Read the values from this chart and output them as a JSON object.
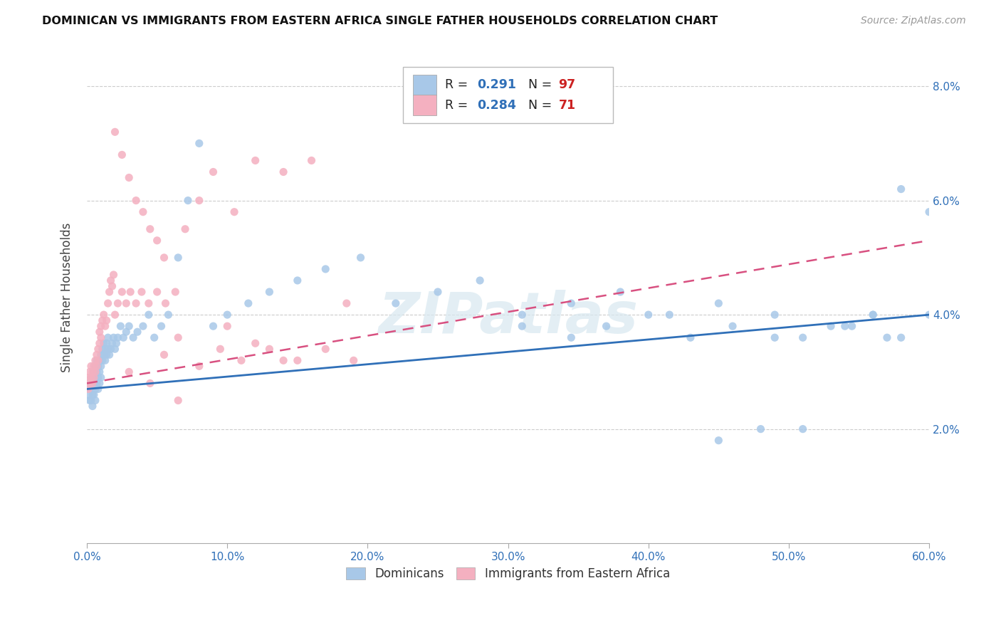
{
  "title": "DOMINICAN VS IMMIGRANTS FROM EASTERN AFRICA SINGLE FATHER HOUSEHOLDS CORRELATION CHART",
  "source": "Source: ZipAtlas.com",
  "ylabel": "Single Father Households",
  "legend_blue_r_val": "0.291",
  "legend_blue_n_val": "97",
  "legend_pink_r_val": "0.284",
  "legend_pink_n_val": "71",
  "legend_blue_label": "Dominicans",
  "legend_pink_label": "Immigrants from Eastern Africa",
  "blue_color": "#a8c8e8",
  "pink_color": "#f4b0c0",
  "blue_line_color": "#3070b8",
  "pink_line_color": "#d85080",
  "watermark_text": "ZIPatlas",
  "xlim": [
    0.0,
    0.6
  ],
  "ylim": [
    0.0,
    0.086
  ],
  "yticks": [
    0.02,
    0.04,
    0.06,
    0.08
  ],
  "xticks": [
    0.0,
    0.1,
    0.2,
    0.3,
    0.4,
    0.5,
    0.6
  ],
  "blue_x": [
    0.001,
    0.001,
    0.002,
    0.002,
    0.003,
    0.003,
    0.003,
    0.004,
    0.004,
    0.004,
    0.005,
    0.005,
    0.005,
    0.006,
    0.006,
    0.006,
    0.006,
    0.007,
    0.007,
    0.007,
    0.008,
    0.008,
    0.008,
    0.009,
    0.009,
    0.009,
    0.01,
    0.01,
    0.01,
    0.011,
    0.011,
    0.012,
    0.012,
    0.013,
    0.013,
    0.014,
    0.014,
    0.015,
    0.015,
    0.016,
    0.017,
    0.018,
    0.019,
    0.02,
    0.021,
    0.022,
    0.024,
    0.026,
    0.028,
    0.03,
    0.033,
    0.036,
    0.04,
    0.044,
    0.048,
    0.053,
    0.058,
    0.065,
    0.072,
    0.08,
    0.09,
    0.1,
    0.115,
    0.13,
    0.15,
    0.17,
    0.195,
    0.22,
    0.25,
    0.28,
    0.31,
    0.345,
    0.38,
    0.415,
    0.45,
    0.49,
    0.53,
    0.56,
    0.58,
    0.6,
    0.31,
    0.345,
    0.37,
    0.4,
    0.43,
    0.46,
    0.49,
    0.51,
    0.54,
    0.56,
    0.58,
    0.6,
    0.57,
    0.545,
    0.51,
    0.48,
    0.45
  ],
  "blue_y": [
    0.028,
    0.026,
    0.027,
    0.025,
    0.029,
    0.027,
    0.025,
    0.028,
    0.026,
    0.024,
    0.03,
    0.028,
    0.026,
    0.031,
    0.029,
    0.027,
    0.025,
    0.032,
    0.03,
    0.028,
    0.031,
    0.029,
    0.027,
    0.032,
    0.03,
    0.028,
    0.033,
    0.031,
    0.029,
    0.034,
    0.032,
    0.035,
    0.033,
    0.034,
    0.032,
    0.035,
    0.033,
    0.036,
    0.034,
    0.033,
    0.034,
    0.035,
    0.036,
    0.034,
    0.035,
    0.036,
    0.038,
    0.036,
    0.037,
    0.038,
    0.036,
    0.037,
    0.038,
    0.04,
    0.036,
    0.038,
    0.04,
    0.05,
    0.06,
    0.07,
    0.038,
    0.04,
    0.042,
    0.044,
    0.046,
    0.048,
    0.05,
    0.042,
    0.044,
    0.046,
    0.04,
    0.042,
    0.044,
    0.04,
    0.042,
    0.036,
    0.038,
    0.04,
    0.036,
    0.04,
    0.038,
    0.036,
    0.038,
    0.04,
    0.036,
    0.038,
    0.04,
    0.036,
    0.038,
    0.04,
    0.062,
    0.058,
    0.036,
    0.038,
    0.02,
    0.02,
    0.018
  ],
  "pink_x": [
    0.001,
    0.001,
    0.002,
    0.002,
    0.003,
    0.003,
    0.004,
    0.004,
    0.005,
    0.005,
    0.006,
    0.006,
    0.007,
    0.007,
    0.008,
    0.008,
    0.009,
    0.009,
    0.01,
    0.01,
    0.011,
    0.012,
    0.013,
    0.014,
    0.015,
    0.016,
    0.017,
    0.018,
    0.019,
    0.02,
    0.022,
    0.025,
    0.028,
    0.031,
    0.035,
    0.039,
    0.044,
    0.05,
    0.056,
    0.063,
    0.07,
    0.08,
    0.09,
    0.105,
    0.12,
    0.14,
    0.16,
    0.185,
    0.055,
    0.065,
    0.08,
    0.095,
    0.11,
    0.13,
    0.15,
    0.17,
    0.19,
    0.065,
    0.045,
    0.03,
    0.02,
    0.025,
    0.03,
    0.035,
    0.04,
    0.045,
    0.05,
    0.055,
    0.1,
    0.12,
    0.14
  ],
  "pink_y": [
    0.029,
    0.027,
    0.03,
    0.028,
    0.031,
    0.029,
    0.03,
    0.028,
    0.031,
    0.029,
    0.032,
    0.03,
    0.033,
    0.031,
    0.034,
    0.032,
    0.037,
    0.035,
    0.038,
    0.036,
    0.039,
    0.04,
    0.038,
    0.039,
    0.042,
    0.044,
    0.046,
    0.045,
    0.047,
    0.04,
    0.042,
    0.044,
    0.042,
    0.044,
    0.042,
    0.044,
    0.042,
    0.044,
    0.042,
    0.044,
    0.055,
    0.06,
    0.065,
    0.058,
    0.067,
    0.065,
    0.067,
    0.042,
    0.033,
    0.036,
    0.031,
    0.034,
    0.032,
    0.034,
    0.032,
    0.034,
    0.032,
    0.025,
    0.028,
    0.03,
    0.072,
    0.068,
    0.064,
    0.06,
    0.058,
    0.055,
    0.053,
    0.05,
    0.038,
    0.035,
    0.032
  ]
}
